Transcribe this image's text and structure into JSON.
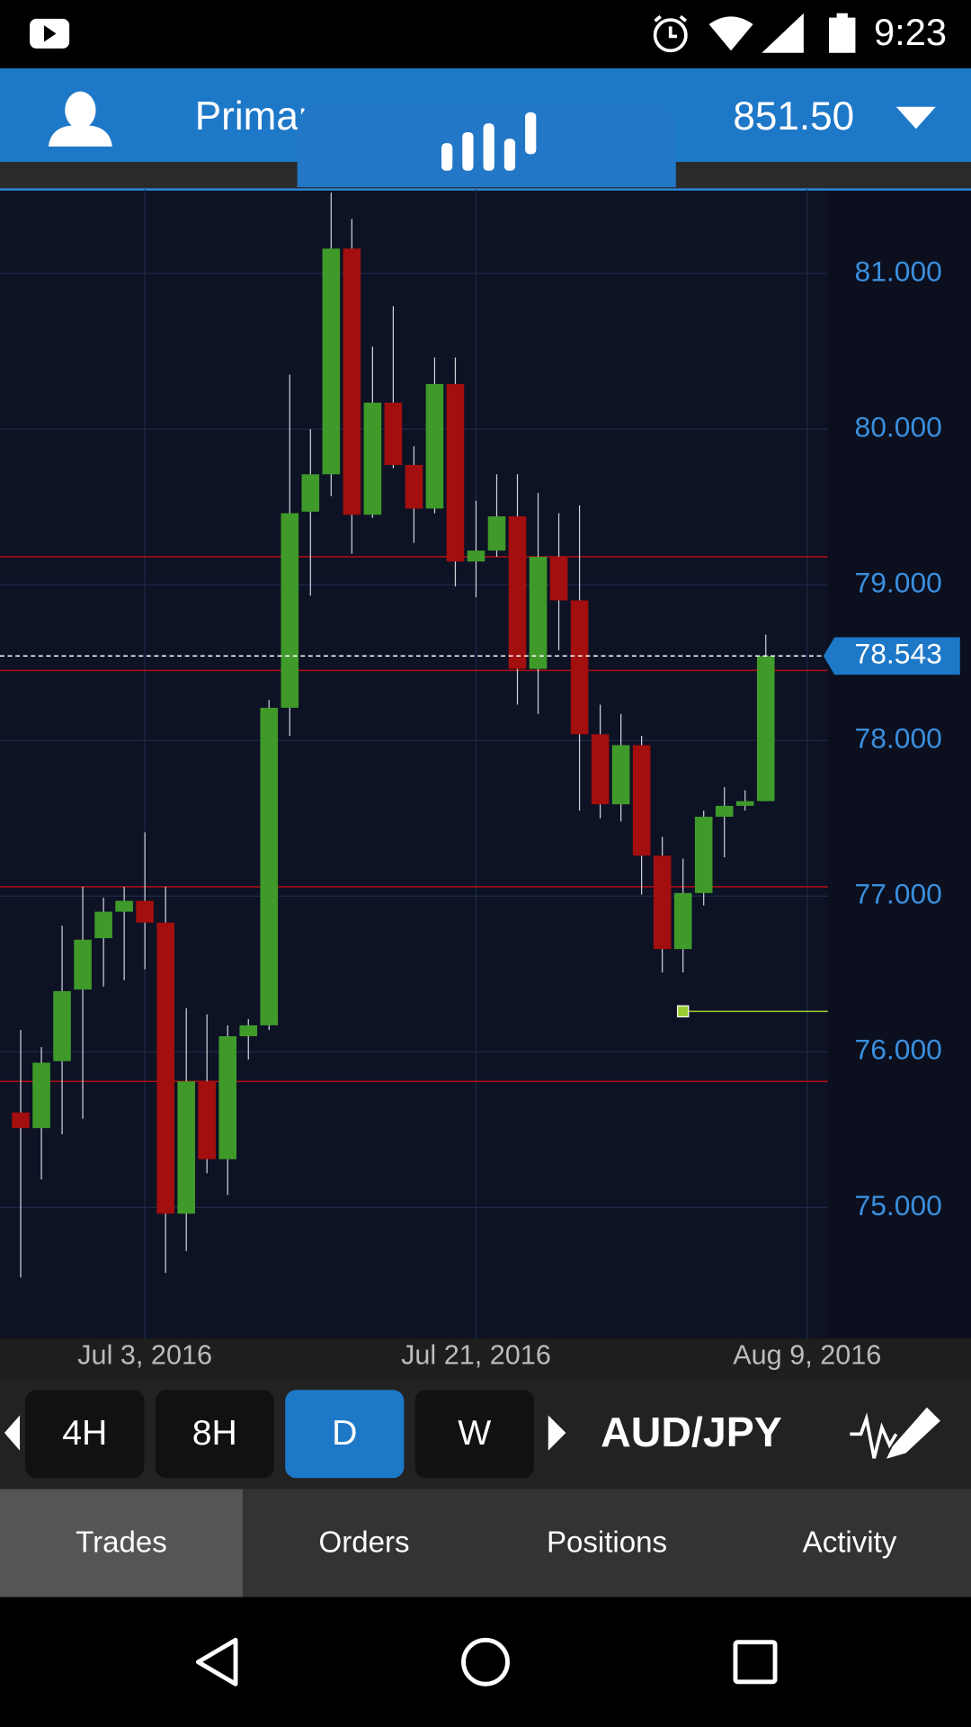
{
  "status_bar": {
    "time": "9:23"
  },
  "header": {
    "account": "Primar",
    "balance": "851.50"
  },
  "chart_data": {
    "type": "candlestick",
    "open": [
      75.61,
      75.51,
      75.94,
      76.4,
      76.73,
      76.9,
      76.97,
      76.83,
      74.96,
      75.81,
      75.31,
      76.1,
      76.17,
      78.21,
      79.47,
      79.71,
      81.16,
      79.45,
      80.17,
      79.77,
      79.49,
      80.29,
      79.15,
      79.22,
      79.44,
      78.46,
      79.18,
      78.9,
      78.04,
      77.59,
      77.97,
      77.26,
      76.66,
      77.02,
      77.51,
      77.58,
      77.61
    ],
    "high": [
      76.14,
      76.03,
      76.81,
      77.06,
      76.99,
      77.06,
      77.41,
      77.06,
      76.28,
      76.24,
      76.17,
      76.21,
      78.26,
      80.35,
      80.0,
      81.52,
      81.35,
      80.53,
      80.79,
      79.89,
      80.46,
      80.46,
      79.54,
      79.71,
      79.71,
      79.59,
      79.46,
      79.51,
      78.23,
      78.17,
      78.03,
      77.38,
      77.24,
      77.55,
      77.7,
      77.68,
      78.68
    ],
    "low": [
      74.55,
      75.18,
      75.47,
      75.57,
      76.42,
      76.46,
      76.53,
      74.58,
      74.72,
      75.22,
      75.08,
      75.95,
      76.14,
      78.03,
      78.93,
      79.57,
      79.2,
      79.43,
      79.75,
      79.27,
      79.46,
      78.99,
      78.92,
      79.18,
      78.23,
      78.17,
      78.58,
      77.55,
      77.5,
      77.48,
      77.01,
      76.51,
      76.51,
      76.94,
      77.25,
      77.55,
      77.61
    ],
    "close": [
      75.51,
      75.93,
      76.39,
      76.72,
      76.9,
      76.97,
      76.83,
      74.96,
      75.81,
      75.31,
      76.1,
      76.17,
      78.21,
      79.46,
      79.71,
      81.16,
      79.45,
      80.17,
      79.77,
      79.49,
      80.29,
      79.15,
      79.22,
      79.44,
      78.46,
      79.18,
      78.9,
      78.04,
      77.59,
      77.97,
      77.26,
      76.66,
      77.02,
      77.51,
      77.58,
      77.61,
      78.543
    ],
    "up_color": "#3f9a2a",
    "down_color": "#a30e0e",
    "ylim": [
      74.16,
      81.54
    ],
    "yticks": [
      {
        "value": 75,
        "label": "75.000"
      },
      {
        "value": 76,
        "label": "76.000"
      },
      {
        "value": 77,
        "label": "77.000"
      },
      {
        "value": 78,
        "label": "78.000"
      },
      {
        "value": 79,
        "label": "79.000"
      },
      {
        "value": 80,
        "label": "80.000"
      },
      {
        "value": 81,
        "label": "81.000"
      }
    ],
    "xlim": [
      -1,
      39
    ],
    "xticks": [
      {
        "value": 6,
        "label": "Jul 3, 2016"
      },
      {
        "value": 22,
        "label": "Jul 21, 2016"
      },
      {
        "value": 38,
        "label": "Aug 9, 2016"
      }
    ],
    "grid": true,
    "levels": [
      79.18,
      78.45,
      77.06,
      75.81
    ],
    "level_color": "#b01010",
    "current_price": 78.543,
    "alert_level": 76.26,
    "alert_start": 32,
    "alert_color": "#9acd32"
  },
  "toolbar": {
    "timeframes": [
      "4H",
      "8H",
      "D",
      "W"
    ],
    "active": 2,
    "instrument": "AUD/JPY"
  },
  "tabs": {
    "items": [
      "Trades",
      "Orders",
      "Positions",
      "Activity"
    ],
    "active": 0
  }
}
